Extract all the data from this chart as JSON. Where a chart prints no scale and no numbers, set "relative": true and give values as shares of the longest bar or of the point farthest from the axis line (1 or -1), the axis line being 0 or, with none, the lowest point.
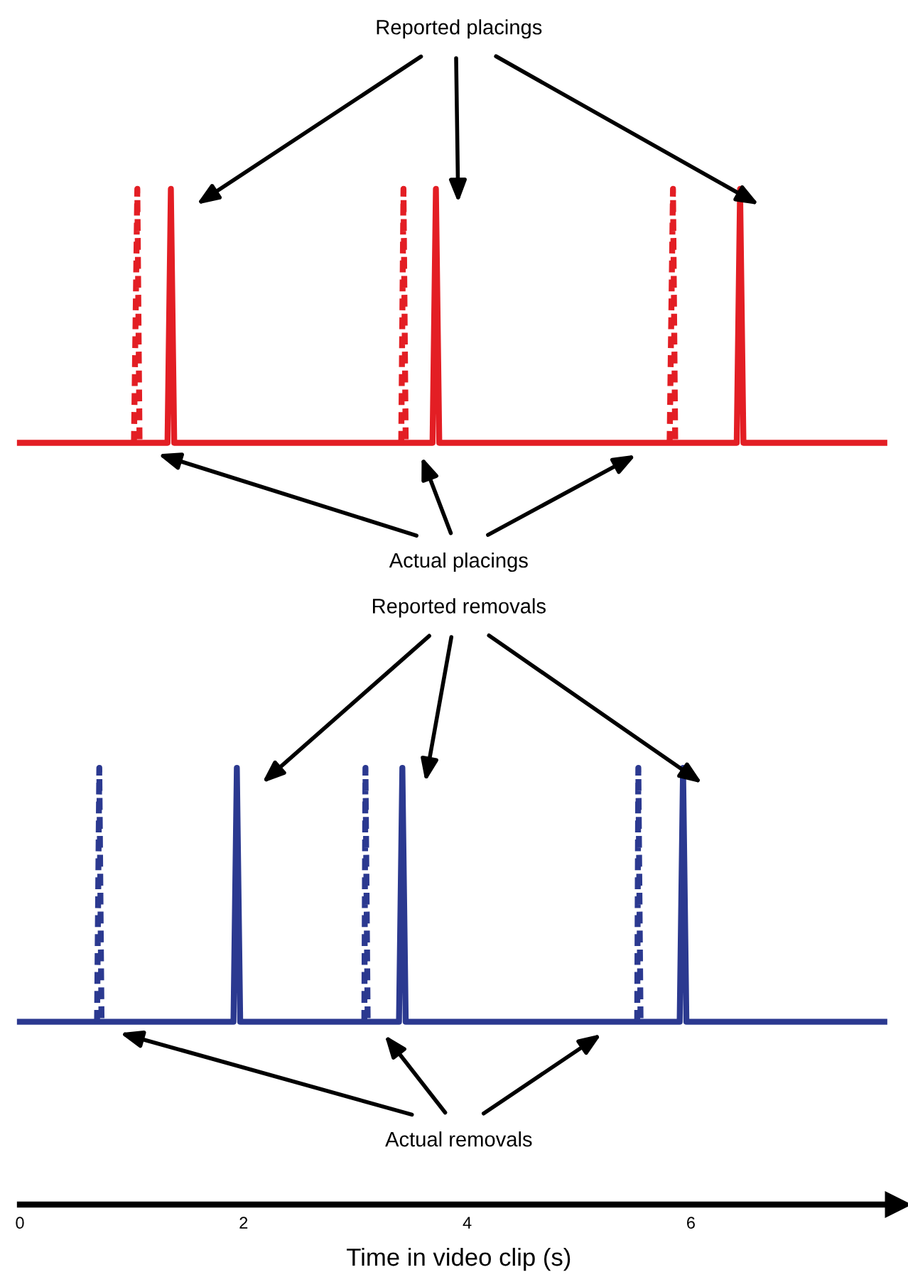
{
  "chart_data": {
    "type": "line",
    "relative": true,
    "xlim": [
      0,
      7.85
    ],
    "xticks": [
      0,
      2,
      4,
      6
    ],
    "xlabel": "Time in video clip (s)",
    "grid": false,
    "legend": false,
    "annotations": [
      "Reported placings",
      "Actual placings",
      "Reported removals",
      "Actual removals"
    ],
    "series": [
      {
        "color": "#e31e24",
        "line_style": "solid",
        "x": [
          0,
          1.32,
          1.35,
          1.38,
          3.69,
          3.72,
          3.75,
          6.41,
          6.44,
          6.47,
          7.73
        ],
        "values": [
          0.75,
          0.75,
          1,
          0.75,
          0.75,
          1,
          0.75,
          0.75,
          1,
          0.75,
          0.75
        ]
      },
      {
        "color": "#e31e24",
        "line_style": "dashed",
        "x": [
          1.02,
          1.05,
          1.07,
          2.2,
          3.41,
          3.43,
          3.45,
          4.6,
          5.81,
          5.84,
          5.86
        ],
        "values": [
          0.75,
          1,
          0.75,
          null,
          0.75,
          1,
          0.75,
          null,
          0.75,
          1,
          0.75
        ]
      },
      {
        "color": "#2b3990",
        "line_style": "solid",
        "x": [
          0,
          1.91,
          1.94,
          1.97,
          3.39,
          3.42,
          3.45,
          5.9,
          5.93,
          5.96,
          7.73
        ],
        "values": [
          0.18,
          0.18,
          0.43,
          0.18,
          0.18,
          0.43,
          0.18,
          0.18,
          0.43,
          0.18,
          0.18
        ]
      },
      {
        "color": "#2b3990",
        "line_style": "dashed",
        "x": [
          0.69,
          0.71,
          0.73,
          1.9,
          3.08,
          3.09,
          3.11,
          4.3,
          5.52,
          5.53,
          5.55
        ],
        "values": [
          0.18,
          0.43,
          0.18,
          null,
          0.18,
          0.43,
          0.18,
          null,
          0.18,
          0.43,
          0.18
        ]
      }
    ]
  }
}
